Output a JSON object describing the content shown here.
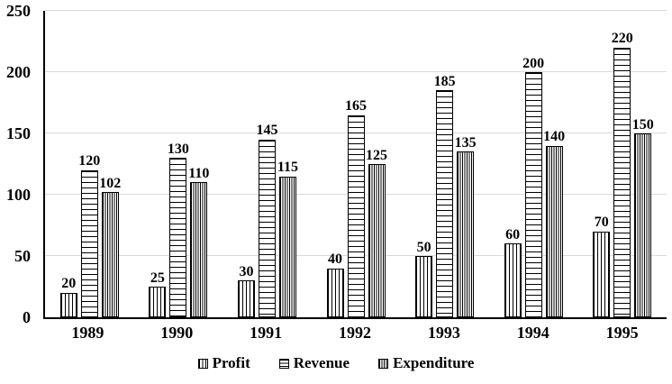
{
  "chart_data": {
    "type": "bar",
    "title": "",
    "categories": [
      "1989",
      "1990",
      "1991",
      "1992",
      "1993",
      "1994",
      "1995"
    ],
    "series": [
      {
        "name": "Profit",
        "pattern": "vertical-lines",
        "values": [
          20,
          25,
          30,
          40,
          50,
          60,
          70
        ]
      },
      {
        "name": "Revenue",
        "pattern": "horizontal-lines",
        "values": [
          120,
          130,
          145,
          165,
          185,
          200,
          220
        ]
      },
      {
        "name": "Expenditure",
        "pattern": "dense-vertical-lines",
        "values": [
          102,
          110,
          115,
          125,
          135,
          140,
          150
        ]
      }
    ],
    "y_axis": {
      "ticks": [
        0,
        50,
        100,
        150,
        200,
        250
      ],
      "min": 0,
      "max": 250,
      "label": ""
    },
    "x_axis": {
      "label": ""
    },
    "grid": "horizontal",
    "legend_position": "bottom",
    "data_labels": true,
    "colors": {
      "bar_outline": "#000000",
      "bar_fill": "#ffffff",
      "pattern_lines": "#000000",
      "gridline": "#d9d9d9",
      "axis": "#000000",
      "text": "#000000",
      "background": "#ffffff"
    }
  }
}
